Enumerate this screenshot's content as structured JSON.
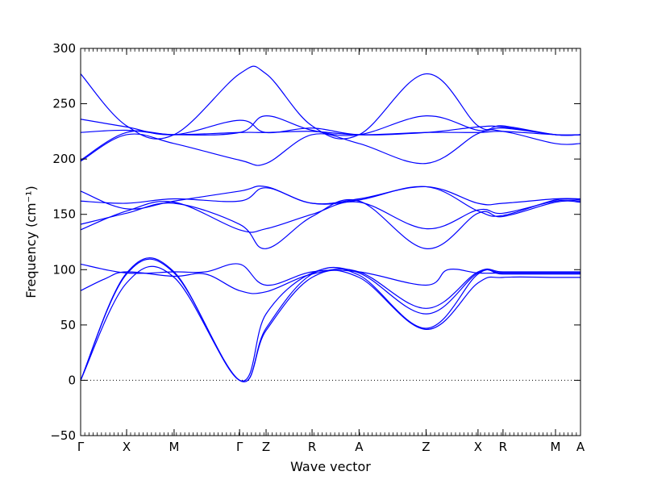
{
  "chart_data": {
    "type": "line",
    "title": "",
    "xlabel": "Wave vector",
    "ylabel": "Frequency (cm⁻¹)",
    "ylim": [
      -50,
      300
    ],
    "yticks": [
      -50,
      0,
      50,
      100,
      150,
      200,
      250,
      300
    ],
    "xlim": [
      0,
      1
    ],
    "xticks": [
      {
        "label": "Γ",
        "x": 0.0
      },
      {
        "label": "X",
        "x": 0.092
      },
      {
        "label": "M",
        "x": 0.187
      },
      {
        "label": "Γ",
        "x": 0.318
      },
      {
        "label": "Z",
        "x": 0.371
      },
      {
        "label": "R",
        "x": 0.463
      },
      {
        "label": "A",
        "x": 0.557
      },
      {
        "label": "Z",
        "x": 0.691
      },
      {
        "label": "X",
        "x": 0.795
      },
      {
        "label": "R",
        "x": 0.845
      },
      {
        "label": "M",
        "x": 0.95
      },
      {
        "label": "A",
        "x": 1.0
      }
    ],
    "zero_line": 0,
    "line_color": "#0000ff",
    "series": [
      {
        "x": [
          0,
          0.092,
          0.187,
          0.318,
          0.371,
          0.463,
          0.557,
          0.691,
          0.795,
          0.845,
          0.95,
          1.0
        ],
        "values": [
          0,
          88,
          93,
          0,
          45,
          93,
          93,
          46,
          88,
          93,
          93,
          93
        ]
      },
      {
        "x": [
          0,
          0.092,
          0.187,
          0.318,
          0.371,
          0.463,
          0.557,
          0.691,
          0.795,
          0.845,
          0.95,
          1.0
        ],
        "values": [
          0,
          96,
          97,
          0,
          47,
          96,
          95,
          47,
          96,
          96,
          96,
          96
        ]
      },
      {
        "x": [
          0,
          0.092,
          0.187,
          0.318,
          0.371,
          0.463,
          0.557,
          0.691,
          0.795,
          0.845,
          0.95,
          1.0
        ],
        "values": [
          0,
          97,
          98,
          0,
          60,
          97,
          97,
          60,
          97,
          97,
          97,
          97
        ]
      },
      {
        "x": [
          0,
          0.05,
          0.092,
          0.187,
          0.25,
          0.318,
          0.371,
          0.463,
          0.557,
          0.691,
          0.795,
          0.845,
          0.95,
          1.0
        ],
        "values": [
          81,
          92,
          98,
          94,
          96,
          81,
          80,
          96,
          98,
          65,
          98,
          98,
          98,
          98
        ]
      },
      {
        "x": [
          0,
          0.092,
          0.187,
          0.25,
          0.318,
          0.371,
          0.463,
          0.557,
          0.691,
          0.735,
          0.795,
          0.845,
          0.95,
          1.0
        ],
        "values": [
          105,
          97,
          98,
          98,
          105,
          86,
          98,
          98,
          86,
          100,
          97,
          97,
          97,
          97
        ]
      },
      {
        "x": [
          0,
          0.092,
          0.187,
          0.318,
          0.371,
          0.463,
          0.557,
          0.691,
          0.795,
          0.845,
          0.95,
          1.0
        ],
        "values": [
          136,
          153,
          161,
          136,
          137,
          150,
          161,
          137,
          154,
          151,
          162,
          162
        ]
      },
      {
        "x": [
          0,
          0.092,
          0.187,
          0.318,
          0.371,
          0.463,
          0.557,
          0.691,
          0.795,
          0.845,
          0.95,
          1.0
        ],
        "values": [
          141,
          151,
          160,
          141,
          119,
          148,
          162,
          119,
          151,
          148,
          161,
          161
        ]
      },
      {
        "x": [
          0,
          0.092,
          0.187,
          0.318,
          0.371,
          0.463,
          0.557,
          0.691,
          0.795,
          0.845,
          0.95,
          1.0
        ],
        "values": [
          162,
          160,
          164,
          162,
          174,
          160,
          164,
          175,
          160,
          160,
          164,
          164
        ]
      },
      {
        "x": [
          0,
          0.092,
          0.187,
          0.318,
          0.371,
          0.463,
          0.557,
          0.691,
          0.795,
          0.845,
          0.95,
          1.0
        ],
        "values": [
          171,
          155,
          162,
          171,
          175,
          160,
          163,
          175,
          153,
          149,
          163,
          163
        ]
      },
      {
        "x": [
          0,
          0.092,
          0.187,
          0.318,
          0.371,
          0.463,
          0.557,
          0.691,
          0.795,
          0.845,
          0.95,
          1.0
        ],
        "values": [
          198,
          222,
          214,
          199,
          196,
          222,
          214,
          196,
          223,
          225,
          214,
          214
        ]
      },
      {
        "x": [
          0,
          0.092,
          0.187,
          0.318,
          0.371,
          0.463,
          0.557,
          0.691,
          0.795,
          0.845,
          0.95,
          1.0
        ],
        "values": [
          199,
          224,
          222,
          224,
          224,
          225,
          222,
          224,
          224,
          225,
          222,
          222
        ]
      },
      {
        "x": [
          0,
          0.092,
          0.187,
          0.318,
          0.371,
          0.463,
          0.557,
          0.691,
          0.795,
          0.845,
          0.95,
          1.0
        ],
        "values": [
          224,
          226,
          222,
          224,
          239,
          226,
          222,
          239,
          226,
          228,
          222,
          222
        ]
      },
      {
        "x": [
          0,
          0.092,
          0.187,
          0.318,
          0.371,
          0.463,
          0.557,
          0.691,
          0.795,
          0.845,
          0.95,
          1.0
        ],
        "values": [
          236,
          229,
          222,
          235,
          224,
          228,
          222,
          224,
          229,
          229,
          222,
          222
        ]
      },
      {
        "x": [
          0,
          0.092,
          0.187,
          0.318,
          0.371,
          0.463,
          0.557,
          0.691,
          0.795,
          0.845,
          0.95,
          1.0
        ],
        "values": [
          277,
          230,
          222,
          277,
          277,
          230,
          222,
          277,
          230,
          230,
          222,
          222
        ]
      }
    ]
  }
}
